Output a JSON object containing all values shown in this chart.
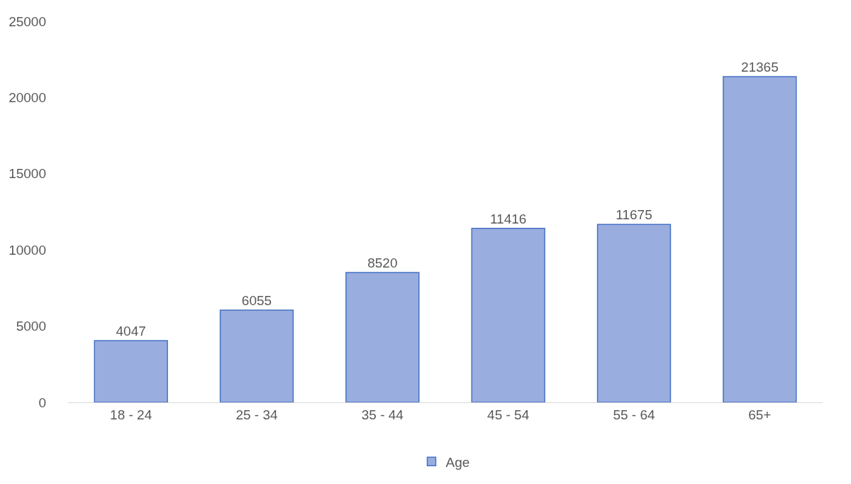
{
  "chart_data": {
    "type": "bar",
    "categories": [
      "18 - 24",
      "25 - 34",
      "35 - 44",
      "45 - 54",
      "55 - 64",
      "65+"
    ],
    "series": [
      {
        "name": "Age",
        "color": "#9aaddf",
        "values": [
          4047,
          6055,
          8520,
          11416,
          11675,
          21365
        ]
      }
    ],
    "ylim": [
      0,
      25000
    ],
    "yticks": [
      0,
      5000,
      10000,
      15000,
      20000,
      25000
    ],
    "data_labels": true,
    "grid": false,
    "legend": "bottom"
  }
}
